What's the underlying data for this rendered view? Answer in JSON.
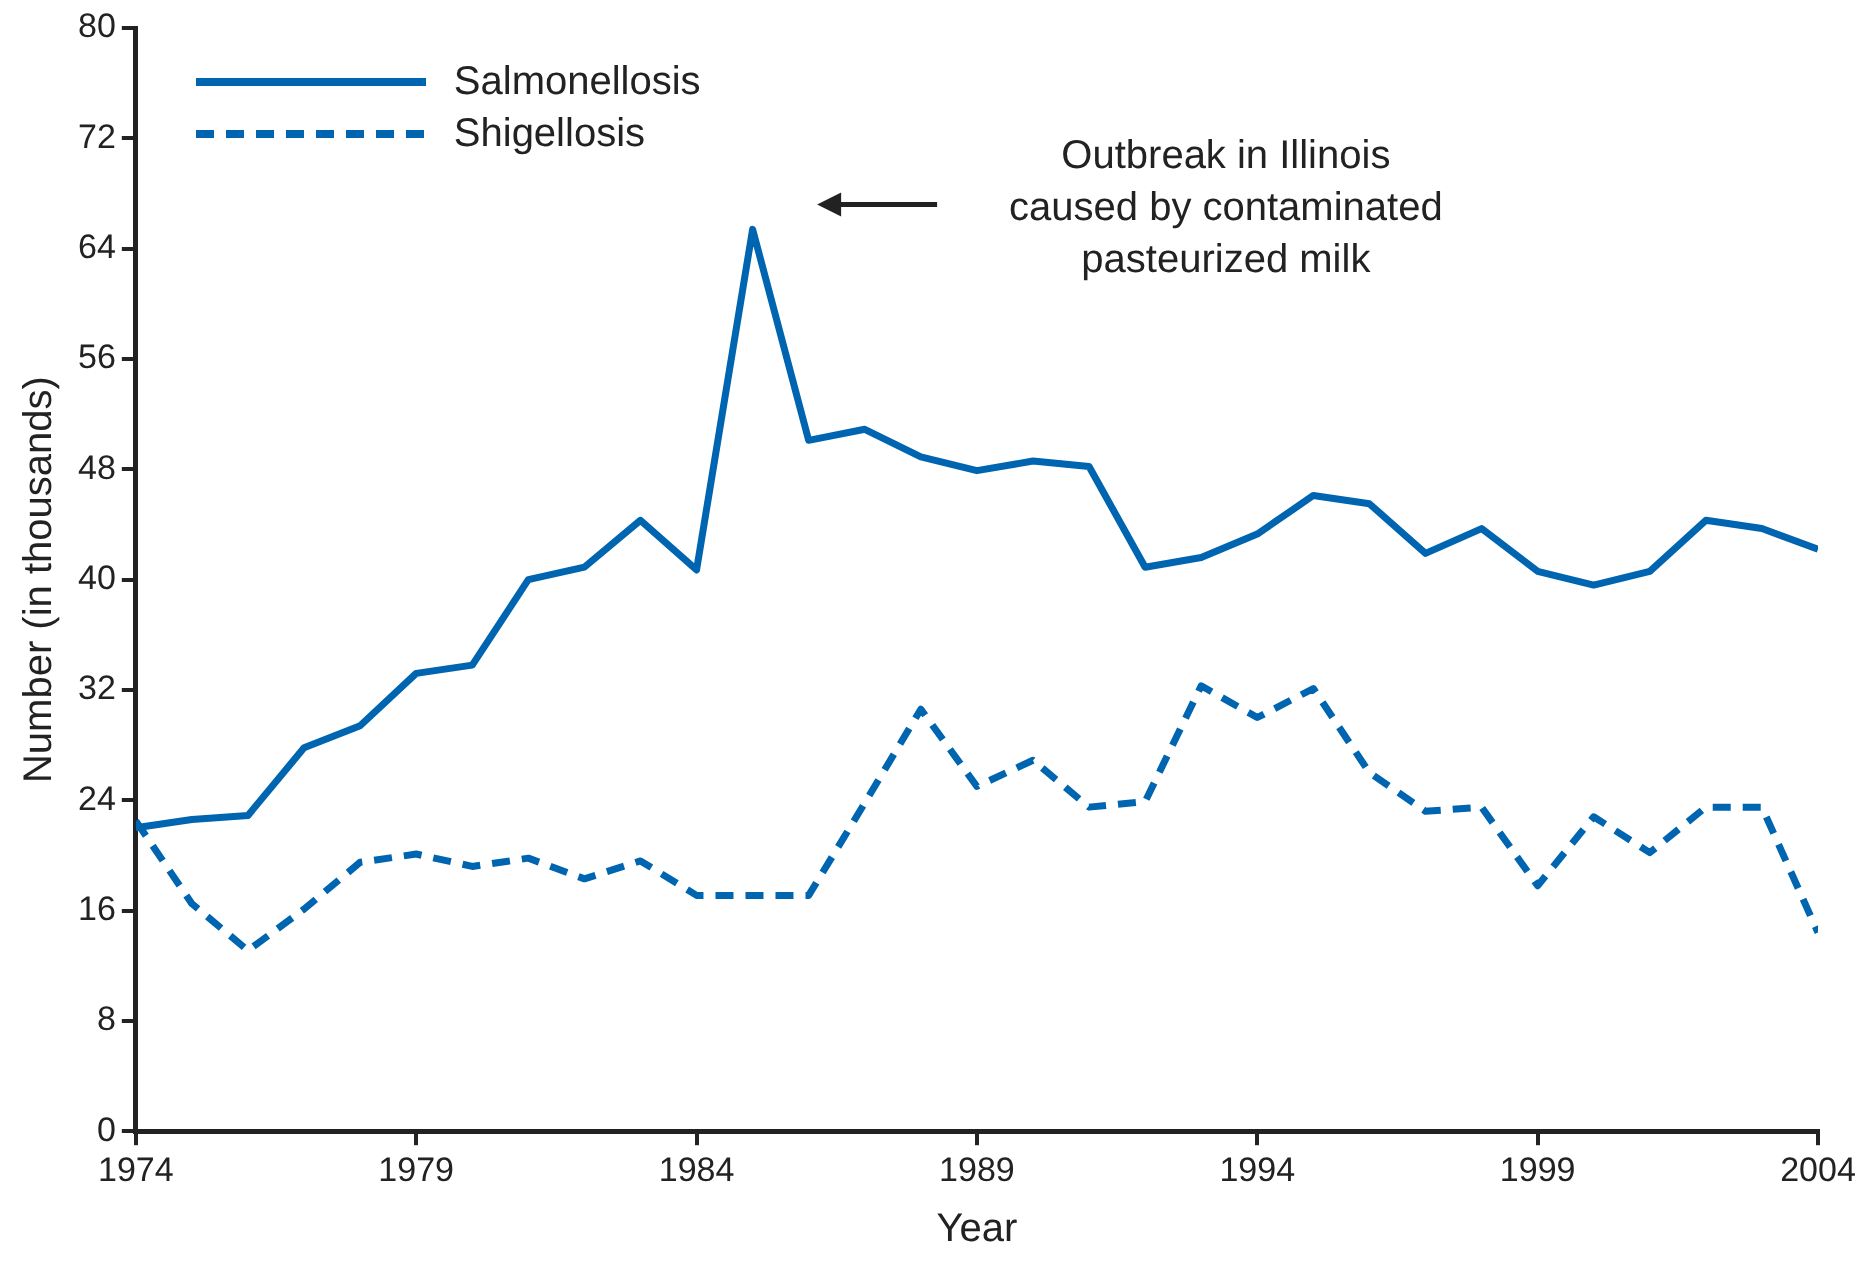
{
  "chart_data": {
    "type": "line",
    "xlabel": "Year",
    "ylabel": "Number (in thousands)",
    "x": [
      1974,
      1975,
      1976,
      1977,
      1978,
      1979,
      1980,
      1981,
      1982,
      1983,
      1984,
      1985,
      1986,
      1987,
      1988,
      1989,
      1990,
      1991,
      1992,
      1993,
      1994,
      1995,
      1996,
      1997,
      1998,
      1999,
      2000,
      2001,
      2002,
      2003,
      2004
    ],
    "series": [
      {
        "name": "Salmonellosis",
        "color": "#0065b0",
        "line_style": "solid",
        "values": [
          22.0,
          22.6,
          22.9,
          27.8,
          29.4,
          33.2,
          33.8,
          40.0,
          40.9,
          44.3,
          40.7,
          65.4,
          50.1,
          50.9,
          48.9,
          47.9,
          48.6,
          48.2,
          40.9,
          41.6,
          43.3,
          46.1,
          45.5,
          41.9,
          43.7,
          40.6,
          39.6,
          40.6,
          44.3,
          43.7,
          42.2
        ]
      },
      {
        "name": "Shigellosis",
        "color": "#0065b0",
        "line_style": "dashed",
        "values": [
          22.5,
          16.5,
          13.1,
          16.1,
          19.5,
          20.1,
          19.2,
          19.8,
          18.3,
          19.6,
          17.1,
          17.1,
          17.1,
          23.8,
          30.6,
          25.0,
          26.9,
          23.5,
          23.9,
          32.3,
          30.0,
          32.1,
          26.0,
          23.2,
          23.5,
          17.8,
          22.8,
          20.2,
          23.5,
          23.5,
          14.4
        ]
      }
    ],
    "xlim": [
      1974,
      2004
    ],
    "xticks": [
      1974,
      1979,
      1984,
      1989,
      1994,
      1999,
      2004
    ],
    "ylim": [
      0,
      80
    ],
    "yticks": [
      0,
      8,
      16,
      24,
      32,
      40,
      48,
      56,
      64,
      72,
      80
    ],
    "grid": false,
    "legend": "top left",
    "marker": "none",
    "annotations": [
      "Outbreak in Illinois\ncaused by contaminated\npasteurized milk"
    ]
  }
}
